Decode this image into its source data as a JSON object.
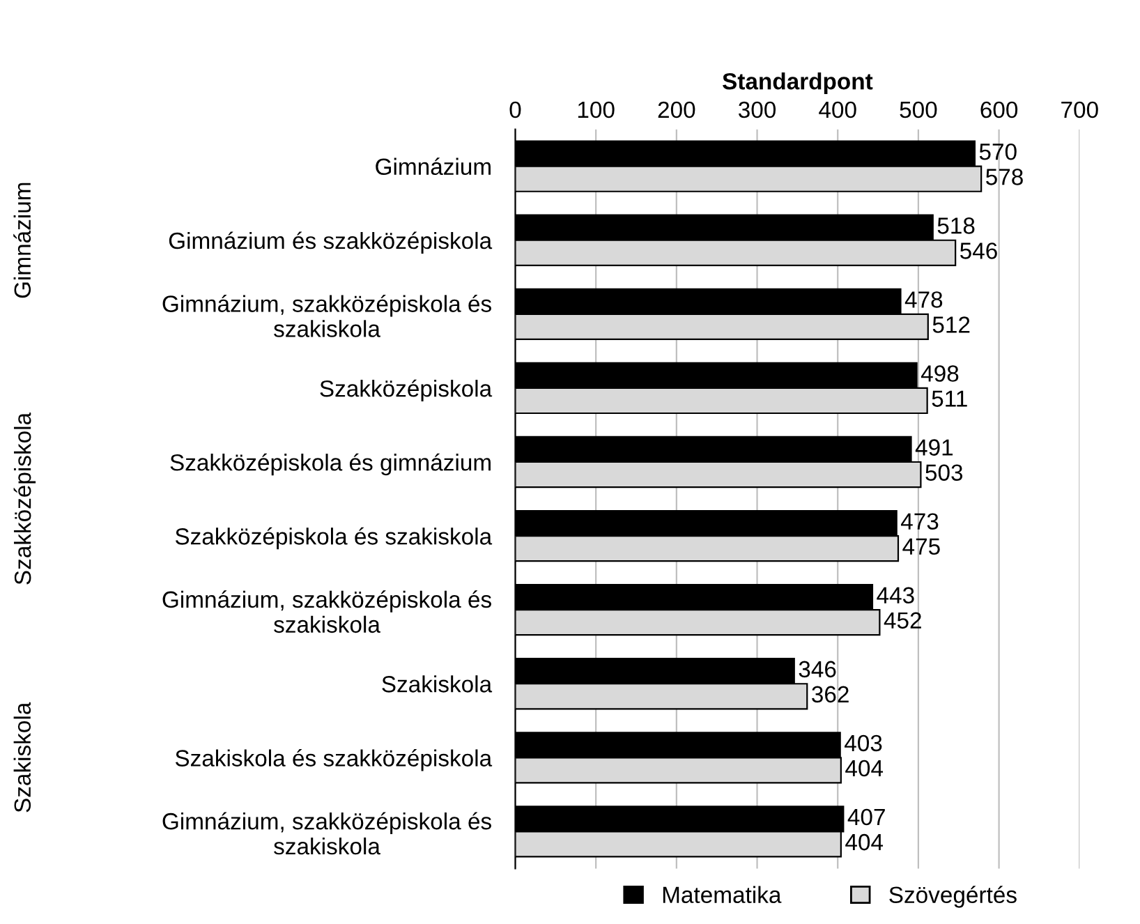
{
  "chart_data": {
    "type": "bar",
    "orientation": "horizontal",
    "xlabel": "Standardpont",
    "categories": [
      "Gimnázium",
      "Gimnázium és szakközépiskola",
      "Gimnázium, szakközépiskola és\nszakiskola",
      "Szakközépiskola",
      "Szakközépiskola és gimnázium",
      "Szakközépiskola és szakiskola",
      "Gimnázium, szakközépiskola és\nszakiskola",
      "Szakiskola",
      "Szakiskola és szakközépiskola",
      "Gimnázium, szakközépiskola és\nszakiskola"
    ],
    "series": [
      {
        "name": "Matematika",
        "color": "#000000",
        "values": [
          570,
          518,
          478,
          498,
          491,
          473,
          443,
          346,
          403,
          407
        ]
      },
      {
        "name": "Szövegértés",
        "color": "#d9d9d9",
        "values": [
          578,
          546,
          512,
          511,
          503,
          475,
          452,
          362,
          404,
          404
        ]
      }
    ],
    "annotations": [
      "Gimnázium",
      "Szakközépiskola",
      "Szakiskola"
    ],
    "xlim": [
      0,
      700
    ],
    "xticks": [
      0,
      100,
      200,
      300,
      400,
      500,
      600,
      700
    ],
    "grid": "x",
    "data_labels": true,
    "legend": "bottom"
  }
}
